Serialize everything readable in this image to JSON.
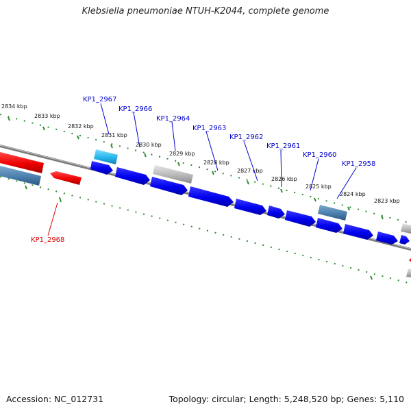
{
  "title": "Klebsiella pneumoniae NTUH-K2044, complete genome",
  "footer": {
    "accession": "Accession: NC_012731",
    "topology": "Topology: circular; Length: 5,248,520 bp; Genes: 5,110"
  },
  "colors": {
    "backbone": "#7a7a7a",
    "ruler": "#2e8b2e",
    "forward_gene": "#0000ee",
    "reverse_gene": "#ee0000",
    "pseudo_gene": "#b8b8b8",
    "highlight_gene": "#27b6ee",
    "rna_gene": "#4a7fae",
    "label_blue": "#0000cc",
    "label_red": "#dd0000"
  },
  "kbp_labels": [
    "2834 kbp",
    "2833 kbp",
    "2832 kbp",
    "2831 kbp",
    "2830 kbp",
    "2829 kbp",
    "2828 kbp",
    "2827 kbp",
    "2826 kbp",
    "2825 kbp",
    "2824 kbp",
    "2823 kbp"
  ],
  "gene_labels": [
    "KP1_2967",
    "KP1_2966",
    "KP1_2964",
    "KP1_2963",
    "KP1_2962",
    "KP1_2961",
    "KP1_2960",
    "KP1_2958",
    "KP1_2968"
  ]
}
